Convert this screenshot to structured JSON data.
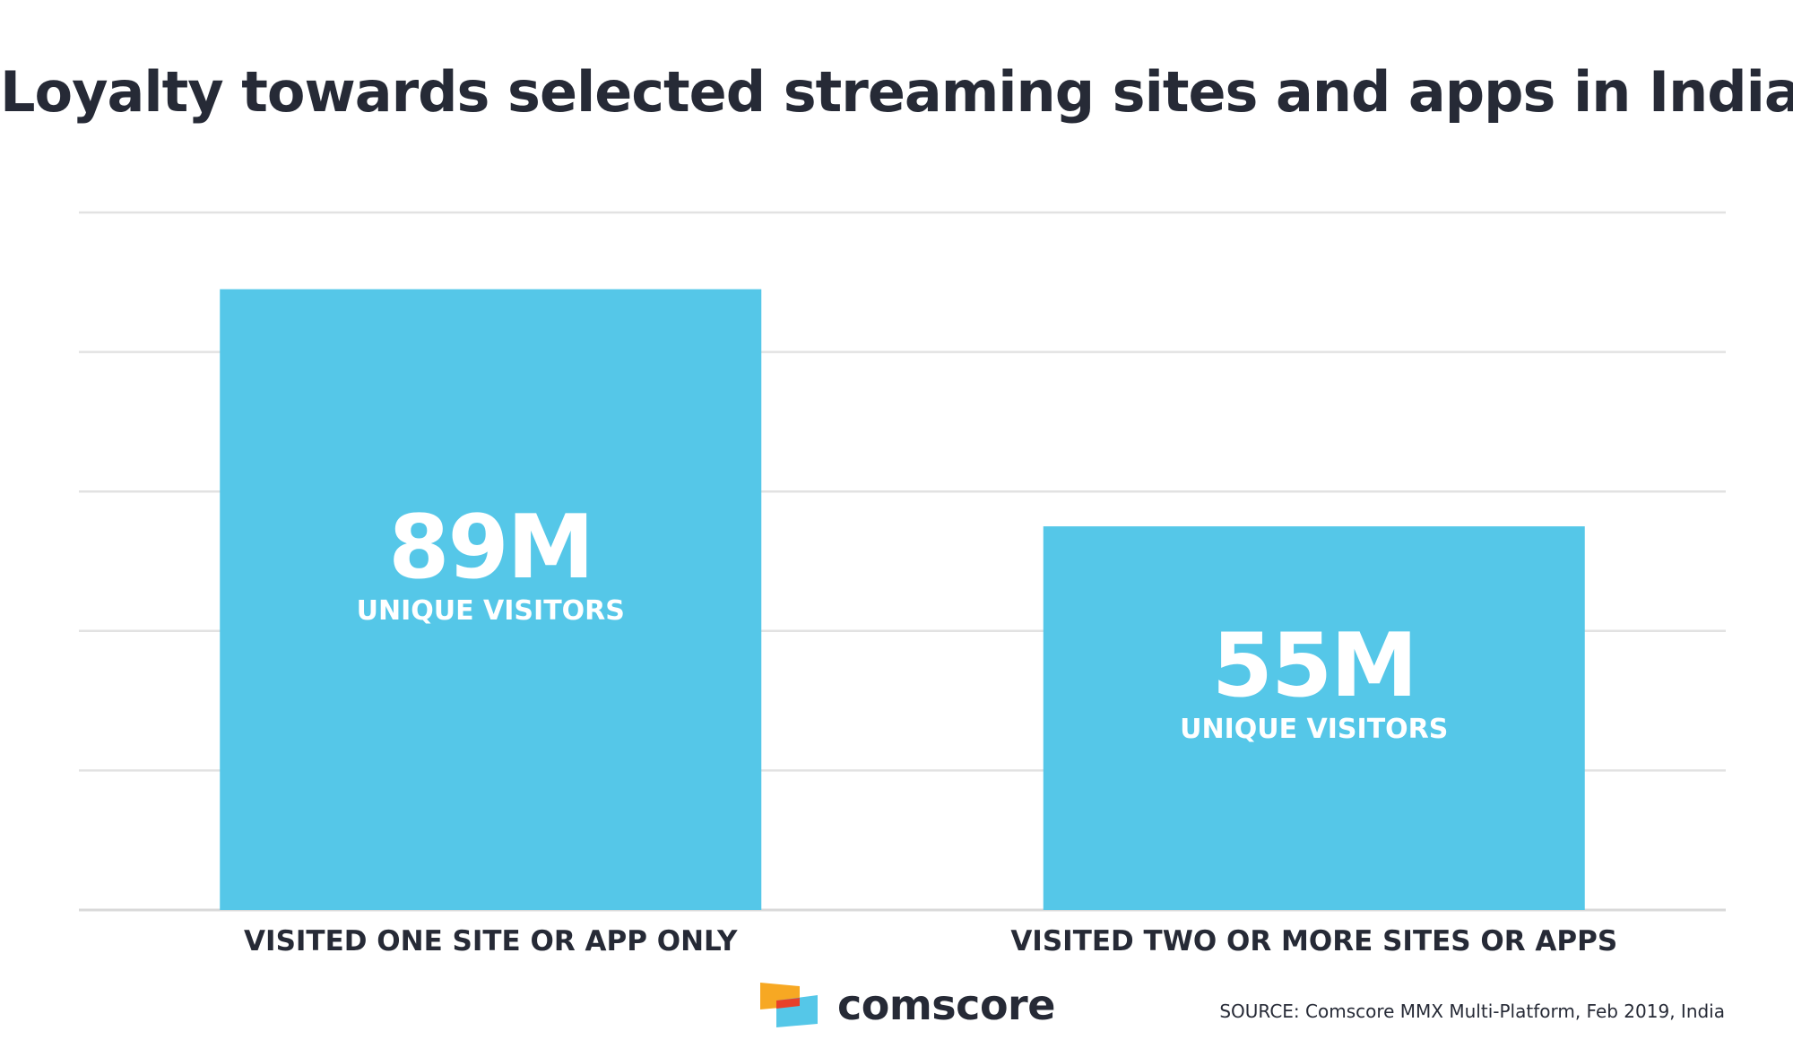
{
  "title": "Loyalty towards selected streaming sites and apps in India",
  "chart_data": {
    "type": "bar",
    "title": "Loyalty towards selected streaming sites and apps in India",
    "categories": [
      "VISITED ONE SITE OR APP ONLY",
      "VISITED TWO OR MORE SITES OR APPS"
    ],
    "values": [
      89,
      55
    ],
    "value_labels": [
      "89M",
      "55M"
    ],
    "value_sublabel": "UNIQUE VISITORS",
    "unit": "M",
    "ylim": [
      0,
      100
    ],
    "grid": true,
    "bar_color": "#55c7e8"
  },
  "logo": {
    "name": "comscore",
    "colors": [
      "#f7a823",
      "#e8402a",
      "#55c7e8"
    ]
  },
  "source": "SOURCE: Comscore MMX Multi-Platform, Feb 2019, India"
}
